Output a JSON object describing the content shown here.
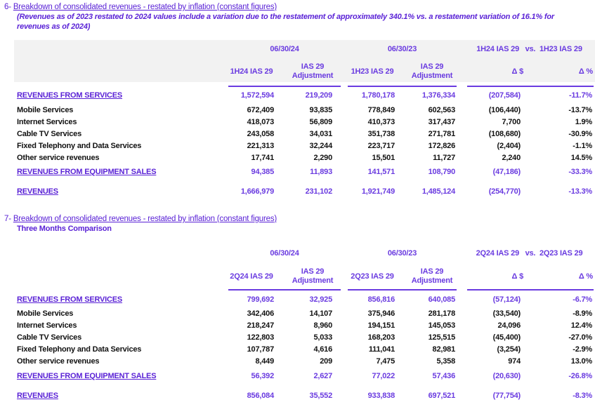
{
  "section6": {
    "number": "6-",
    "title": "Breakdown of consolidated revenues - restated by inflation (constant figures)",
    "note_line1": "(Revenues as of 2023 restated to 2024 values include a variation due to the restatement of approximately 340.1% vs. a restatement variation of 16.1% for",
    "note_line2": "revenues as of 2024)",
    "header": {
      "date1": "06/30/24",
      "date2": "06/30/23",
      "comparison": "1H24 IAS 29   vs.  1H23 IAS 29",
      "cols": [
        "1H24 IAS 29",
        "IAS 29\nAdjustment",
        "1H23 IAS 29",
        "IAS 29\nAdjustment",
        "Δ $",
        "Δ %"
      ]
    },
    "rows": [
      {
        "label": "REVENUES FROM SERVICES",
        "highlight": true,
        "values": [
          "1,572,594",
          "219,209",
          "1,780,178",
          "1,376,334",
          "(207,584)",
          "-11.7%"
        ]
      },
      {
        "label": "Mobile Services",
        "highlight": false,
        "values": [
          "672,409",
          "93,835",
          "778,849",
          "602,563",
          "(106,440)",
          "-13.7%"
        ]
      },
      {
        "label": "Internet Services",
        "highlight": false,
        "values": [
          "418,073",
          "56,809",
          "410,373",
          "317,437",
          "7,700",
          "1.9%"
        ]
      },
      {
        "label": "Cable TV Services",
        "highlight": false,
        "values": [
          "243,058",
          "34,031",
          "351,738",
          "271,781",
          "(108,680)",
          "-30.9%"
        ]
      },
      {
        "label": "Fixed Telephony and Data Services",
        "highlight": false,
        "values": [
          "221,313",
          "32,244",
          "223,717",
          "172,826",
          "(2,404)",
          "-1.1%"
        ]
      },
      {
        "label": "Other service revenues",
        "highlight": false,
        "values": [
          "17,741",
          "2,290",
          "15,501",
          "11,727",
          "2,240",
          "14.5%"
        ]
      },
      {
        "label": "REVENUES FROM EQUIPMENT SALES",
        "highlight": true,
        "values": [
          "94,385",
          "11,893",
          "141,571",
          "108,790",
          "(47,186)",
          "-33.3%"
        ]
      },
      {
        "label": "REVENUES",
        "highlight": true,
        "values": [
          "1,666,979",
          "231,102",
          "1,921,749",
          "1,485,124",
          "(254,770)",
          "-13.3%"
        ]
      }
    ]
  },
  "section7": {
    "number": "7-",
    "title": "Breakdown of consolidated revenues - restated by inflation (constant figures)",
    "subtitle": "Three Months Comparison",
    "header": {
      "date1": "06/30/24",
      "date2": "06/30/23",
      "comparison": "2Q24 IAS 29   vs.  2Q23 IAS 29",
      "cols": [
        "2Q24 IAS 29",
        "IAS 29\nAdjustment",
        "2Q23 IAS 29",
        "IAS 29\nAdjustment",
        "Δ $",
        "Δ %"
      ]
    },
    "rows": [
      {
        "label": "REVENUES FROM SERVICES",
        "highlight": true,
        "values": [
          "799,692",
          "32,925",
          "856,816",
          "640,085",
          "(57,124)",
          "-6.7%"
        ]
      },
      {
        "label": "Mobile Services",
        "highlight": false,
        "values": [
          "342,406",
          "14,107",
          "375,946",
          "281,178",
          "(33,540)",
          "-8.9%"
        ]
      },
      {
        "label": "Internet Services",
        "highlight": false,
        "values": [
          "218,247",
          "8,960",
          "194,151",
          "145,053",
          "24,096",
          "12.4%"
        ]
      },
      {
        "label": "Cable TV Services",
        "highlight": false,
        "values": [
          "122,803",
          "5,033",
          "168,203",
          "125,515",
          "(45,400)",
          "-27.0%"
        ]
      },
      {
        "label": "Fixed Telephony and Data Services",
        "highlight": false,
        "values": [
          "107,787",
          "4,616",
          "111,041",
          "82,981",
          "(3,254)",
          "-2.9%"
        ]
      },
      {
        "label": "Other service revenues",
        "highlight": false,
        "values": [
          "8,449",
          "209",
          "7,475",
          "5,358",
          "974",
          "13.0%"
        ]
      },
      {
        "label": "REVENUES FROM EQUIPMENT SALES",
        "highlight": true,
        "values": [
          "56,392",
          "2,627",
          "77,022",
          "57,436",
          "(20,630)",
          "-26.8%"
        ]
      },
      {
        "label": "REVENUES",
        "highlight": true,
        "values": [
          "856,084",
          "35,552",
          "933,838",
          "697,521",
          "(77,754)",
          "-8.3%"
        ]
      }
    ]
  }
}
